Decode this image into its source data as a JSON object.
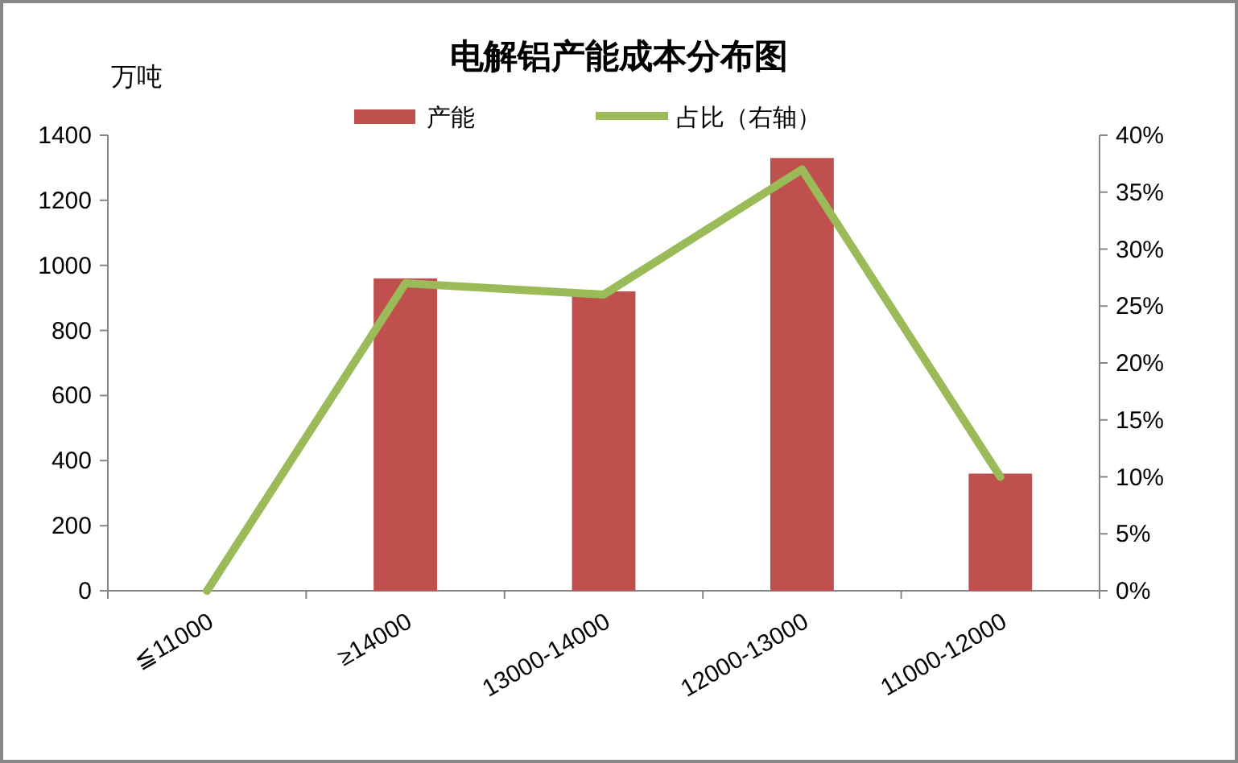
{
  "chart_data": {
    "type": "bar",
    "title": "电解铝产能成本分布图",
    "ylabel": "万吨",
    "categories": [
      "≦11000",
      "≥14000",
      "13000-14000",
      "12000-13000",
      "11000-12000"
    ],
    "series": [
      {
        "name": "产能",
        "color": "#c0504d",
        "values": [
          0,
          960,
          920,
          1330,
          360
        ]
      },
      {
        "name": "占比（右轴）",
        "type": "line",
        "axis": "y2",
        "color": "#9bbb59",
        "values": [
          0,
          27,
          26,
          37,
          10
        ]
      }
    ],
    "ylim": [
      0,
      1400
    ],
    "yticks": [
      0,
      200,
      400,
      600,
      800,
      1000,
      1200,
      1400
    ],
    "y2lim": [
      0,
      40
    ],
    "y2ticks": [
      {
        "value": 0,
        "label": "0%"
      },
      {
        "value": 5,
        "label": "5%"
      },
      {
        "value": 10,
        "label": "10%"
      },
      {
        "value": 15,
        "label": "15%"
      },
      {
        "value": 20,
        "label": "20%"
      },
      {
        "value": 25,
        "label": "25%"
      },
      {
        "value": 30,
        "label": "30%"
      },
      {
        "value": 35,
        "label": "35%"
      },
      {
        "value": 40,
        "label": "40%"
      }
    ],
    "grid": false,
    "legend": "top",
    "marker": "none",
    "line_style": "solid"
  }
}
